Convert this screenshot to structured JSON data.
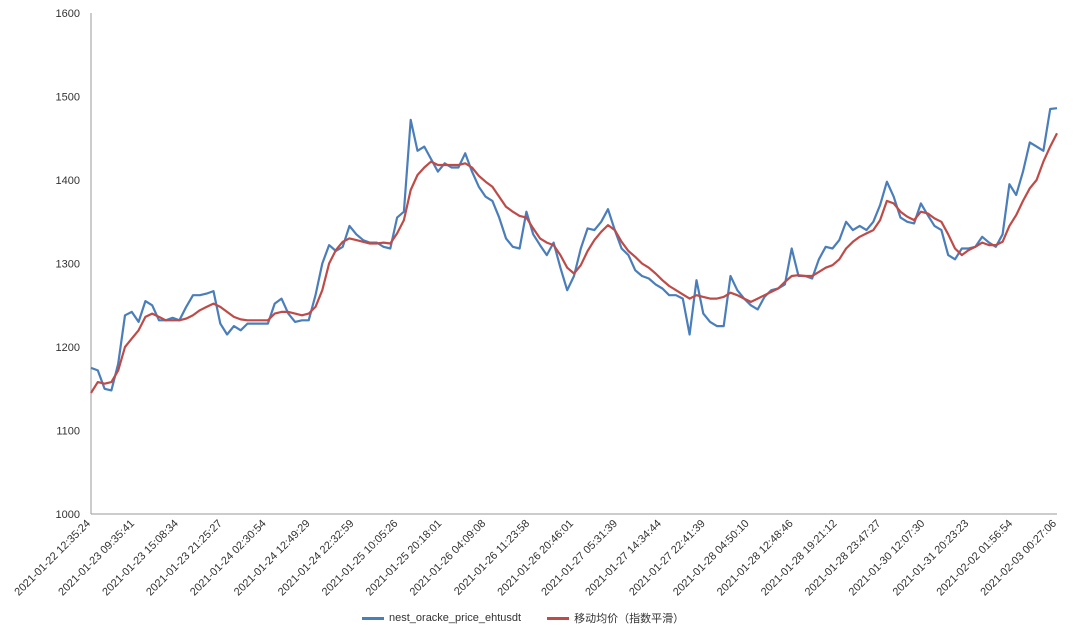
{
  "chart_data": {
    "type": "line",
    "title": "",
    "xlabel": "",
    "ylabel": "",
    "ylim": [
      1000,
      1600
    ],
    "yticks": [
      1000,
      1100,
      1200,
      1300,
      1400,
      1500,
      1600
    ],
    "grid": false,
    "legend_position": "bottom",
    "categories": [
      "2021-01-22 12:35:24",
      "2021-01-23 09:35:41",
      "2021-01-23 15:08:34",
      "2021-01-23 21:25:27",
      "2021-01-24 02:30:54",
      "2021-01-24 12:49:29",
      "2021-01-24 22:32:59",
      "2021-01-25 10:05:26",
      "2021-01-25 20:18:01",
      "2021-01-26 04:09:08",
      "2021-01-26 11:23:58",
      "2021-01-26 20:46:01",
      "2021-01-27 05:31:39",
      "2021-01-27 14:34:44",
      "2021-01-27 22:41:39",
      "2021-01-28 04:50:10",
      "2021-01-28 12:48:46",
      "2021-01-28 19:21:12",
      "2021-01-28 23:47:27",
      "2021-01-30 12:07:30",
      "2021-01-31 20:23:23",
      "2021-02-02 01:56:54",
      "2021-02-03 00:27:06"
    ],
    "series": [
      {
        "name": "nest_oracke_price_ehtusdt",
        "color": "#4a7ebb",
        "values": [
          [
            0,
            1175
          ],
          [
            1,
            1172
          ],
          [
            2,
            1150
          ],
          [
            3,
            1148
          ],
          [
            4,
            1180
          ],
          [
            5,
            1238
          ],
          [
            6,
            1242
          ],
          [
            7,
            1230
          ],
          [
            8,
            1255
          ],
          [
            9,
            1250
          ],
          [
            10,
            1232
          ],
          [
            11,
            1232
          ],
          [
            12,
            1235
          ],
          [
            13,
            1232
          ],
          [
            14,
            1248
          ],
          [
            15,
            1262
          ],
          [
            16,
            1262
          ],
          [
            17,
            1264
          ],
          [
            18,
            1267
          ],
          [
            19,
            1228
          ],
          [
            20,
            1215
          ],
          [
            21,
            1225
          ],
          [
            22,
            1220
          ],
          [
            23,
            1228
          ],
          [
            24,
            1228
          ],
          [
            25,
            1228
          ],
          [
            26,
            1228
          ],
          [
            27,
            1252
          ],
          [
            28,
            1258
          ],
          [
            29,
            1240
          ],
          [
            30,
            1230
          ],
          [
            31,
            1232
          ],
          [
            32,
            1232
          ],
          [
            33,
            1262
          ],
          [
            34,
            1300
          ],
          [
            35,
            1322
          ],
          [
            36,
            1315
          ],
          [
            37,
            1320
          ],
          [
            38,
            1345
          ],
          [
            39,
            1335
          ],
          [
            40,
            1328
          ],
          [
            41,
            1325
          ],
          [
            42,
            1325
          ],
          [
            43,
            1320
          ],
          [
            44,
            1318
          ],
          [
            45,
            1355
          ],
          [
            46,
            1362
          ],
          [
            47,
            1472
          ],
          [
            48,
            1435
          ],
          [
            49,
            1440
          ],
          [
            50,
            1425
          ],
          [
            51,
            1410
          ],
          [
            52,
            1420
          ],
          [
            53,
            1415
          ],
          [
            54,
            1415
          ],
          [
            55,
            1432
          ],
          [
            56,
            1410
          ],
          [
            57,
            1392
          ],
          [
            58,
            1380
          ],
          [
            59,
            1375
          ],
          [
            60,
            1355
          ],
          [
            61,
            1330
          ],
          [
            62,
            1320
          ],
          [
            63,
            1318
          ],
          [
            64,
            1362
          ],
          [
            65,
            1335
          ],
          [
            66,
            1322
          ],
          [
            67,
            1310
          ],
          [
            68,
            1325
          ],
          [
            69,
            1295
          ],
          [
            70,
            1268
          ],
          [
            71,
            1285
          ],
          [
            72,
            1318
          ],
          [
            73,
            1342
          ],
          [
            74,
            1340
          ],
          [
            75,
            1350
          ],
          [
            76,
            1365
          ],
          [
            77,
            1340
          ],
          [
            78,
            1318
          ],
          [
            79,
            1310
          ],
          [
            80,
            1292
          ],
          [
            81,
            1285
          ],
          [
            82,
            1282
          ],
          [
            83,
            1275
          ],
          [
            84,
            1270
          ],
          [
            85,
            1262
          ],
          [
            86,
            1262
          ],
          [
            87,
            1258
          ],
          [
            88,
            1215
          ],
          [
            89,
            1280
          ],
          [
            90,
            1240
          ],
          [
            91,
            1230
          ],
          [
            92,
            1225
          ],
          [
            93,
            1225
          ],
          [
            94,
            1285
          ],
          [
            95,
            1268
          ],
          [
            96,
            1258
          ],
          [
            97,
            1250
          ],
          [
            98,
            1245
          ],
          [
            99,
            1260
          ],
          [
            100,
            1268
          ],
          [
            101,
            1270
          ],
          [
            102,
            1275
          ],
          [
            103,
            1318
          ],
          [
            104,
            1285
          ],
          [
            105,
            1285
          ],
          [
            106,
            1282
          ],
          [
            107,
            1305
          ],
          [
            108,
            1320
          ],
          [
            109,
            1318
          ],
          [
            110,
            1328
          ],
          [
            111,
            1350
          ],
          [
            112,
            1340
          ],
          [
            113,
            1345
          ],
          [
            114,
            1340
          ],
          [
            115,
            1350
          ],
          [
            116,
            1370
          ],
          [
            117,
            1398
          ],
          [
            118,
            1380
          ],
          [
            119,
            1355
          ],
          [
            120,
            1350
          ],
          [
            121,
            1348
          ],
          [
            122,
            1372
          ],
          [
            123,
            1358
          ],
          [
            124,
            1345
          ],
          [
            125,
            1340
          ],
          [
            126,
            1310
          ],
          [
            127,
            1305
          ],
          [
            128,
            1318
          ],
          [
            129,
            1318
          ],
          [
            130,
            1320
          ],
          [
            131,
            1332
          ],
          [
            132,
            1325
          ],
          [
            133,
            1320
          ],
          [
            134,
            1335
          ],
          [
            135,
            1395
          ],
          [
            136,
            1382
          ],
          [
            137,
            1410
          ],
          [
            138,
            1445
          ],
          [
            139,
            1440
          ],
          [
            140,
            1435
          ],
          [
            141,
            1485
          ],
          [
            142,
            1486
          ]
        ]
      },
      {
        "name": "移动均价（指数平滑）",
        "color": "#be4b48",
        "values": [
          [
            0,
            1145
          ],
          [
            1,
            1158
          ],
          [
            2,
            1156
          ],
          [
            3,
            1158
          ],
          [
            4,
            1172
          ],
          [
            5,
            1200
          ],
          [
            6,
            1210
          ],
          [
            7,
            1220
          ],
          [
            8,
            1236
          ],
          [
            9,
            1240
          ],
          [
            10,
            1236
          ],
          [
            11,
            1232
          ],
          [
            12,
            1232
          ],
          [
            13,
            1232
          ],
          [
            14,
            1234
          ],
          [
            15,
            1238
          ],
          [
            16,
            1244
          ],
          [
            17,
            1248
          ],
          [
            18,
            1252
          ],
          [
            19,
            1248
          ],
          [
            20,
            1242
          ],
          [
            21,
            1236
          ],
          [
            22,
            1233
          ],
          [
            23,
            1232
          ],
          [
            24,
            1232
          ],
          [
            25,
            1232
          ],
          [
            26,
            1232
          ],
          [
            27,
            1240
          ],
          [
            28,
            1242
          ],
          [
            29,
            1242
          ],
          [
            30,
            1240
          ],
          [
            31,
            1238
          ],
          [
            32,
            1240
          ],
          [
            33,
            1248
          ],
          [
            34,
            1268
          ],
          [
            35,
            1300
          ],
          [
            36,
            1316
          ],
          [
            37,
            1326
          ],
          [
            38,
            1330
          ],
          [
            39,
            1328
          ],
          [
            40,
            1326
          ],
          [
            41,
            1324
          ],
          [
            42,
            1324
          ],
          [
            43,
            1325
          ],
          [
            44,
            1324
          ],
          [
            45,
            1336
          ],
          [
            46,
            1352
          ],
          [
            47,
            1388
          ],
          [
            48,
            1406
          ],
          [
            49,
            1415
          ],
          [
            50,
            1422
          ],
          [
            51,
            1418
          ],
          [
            52,
            1418
          ],
          [
            53,
            1418
          ],
          [
            54,
            1418
          ],
          [
            55,
            1420
          ],
          [
            56,
            1415
          ],
          [
            57,
            1405
          ],
          [
            58,
            1398
          ],
          [
            59,
            1392
          ],
          [
            60,
            1380
          ],
          [
            61,
            1368
          ],
          [
            62,
            1362
          ],
          [
            63,
            1357
          ],
          [
            64,
            1355
          ],
          [
            65,
            1342
          ],
          [
            66,
            1330
          ],
          [
            67,
            1325
          ],
          [
            68,
            1322
          ],
          [
            69,
            1310
          ],
          [
            70,
            1295
          ],
          [
            71,
            1288
          ],
          [
            72,
            1298
          ],
          [
            73,
            1315
          ],
          [
            74,
            1328
          ],
          [
            75,
            1338
          ],
          [
            76,
            1346
          ],
          [
            77,
            1340
          ],
          [
            78,
            1326
          ],
          [
            79,
            1315
          ],
          [
            80,
            1308
          ],
          [
            81,
            1300
          ],
          [
            82,
            1295
          ],
          [
            83,
            1288
          ],
          [
            84,
            1280
          ],
          [
            85,
            1273
          ],
          [
            86,
            1268
          ],
          [
            87,
            1263
          ],
          [
            88,
            1258
          ],
          [
            89,
            1262
          ],
          [
            90,
            1260
          ],
          [
            91,
            1258
          ],
          [
            92,
            1258
          ],
          [
            93,
            1260
          ],
          [
            94,
            1265
          ],
          [
            95,
            1262
          ],
          [
            96,
            1258
          ],
          [
            97,
            1254
          ],
          [
            98,
            1258
          ],
          [
            99,
            1262
          ],
          [
            100,
            1266
          ],
          [
            101,
            1270
          ],
          [
            102,
            1278
          ],
          [
            103,
            1285
          ],
          [
            104,
            1286
          ],
          [
            105,
            1285
          ],
          [
            106,
            1285
          ],
          [
            107,
            1290
          ],
          [
            108,
            1295
          ],
          [
            109,
            1298
          ],
          [
            110,
            1305
          ],
          [
            111,
            1318
          ],
          [
            112,
            1326
          ],
          [
            113,
            1332
          ],
          [
            114,
            1336
          ],
          [
            115,
            1340
          ],
          [
            116,
            1352
          ],
          [
            117,
            1375
          ],
          [
            118,
            1372
          ],
          [
            119,
            1362
          ],
          [
            120,
            1356
          ],
          [
            121,
            1352
          ],
          [
            122,
            1362
          ],
          [
            123,
            1360
          ],
          [
            124,
            1354
          ],
          [
            125,
            1350
          ],
          [
            126,
            1335
          ],
          [
            127,
            1318
          ],
          [
            128,
            1310
          ],
          [
            129,
            1316
          ],
          [
            130,
            1320
          ],
          [
            131,
            1325
          ],
          [
            132,
            1322
          ],
          [
            133,
            1322
          ],
          [
            134,
            1326
          ],
          [
            135,
            1345
          ],
          [
            136,
            1358
          ],
          [
            137,
            1375
          ],
          [
            138,
            1390
          ],
          [
            139,
            1400
          ],
          [
            140,
            1422
          ],
          [
            141,
            1440
          ],
          [
            142,
            1456
          ]
        ]
      }
    ]
  }
}
